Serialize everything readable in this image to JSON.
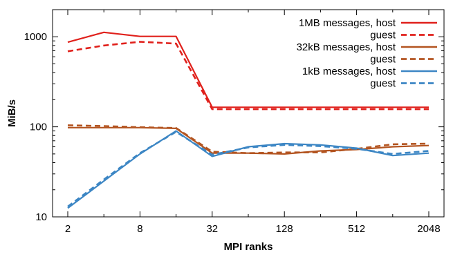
{
  "chart_data": {
    "type": "line",
    "xlabel": "MPI ranks",
    "ylabel": "MiB/s",
    "x_scale": "log2",
    "y_scale": "log10",
    "xlim": [
      2,
      2048
    ],
    "ylim": [
      10,
      2000
    ],
    "x_ticks": [
      2,
      8,
      32,
      128,
      512,
      2048
    ],
    "x_tick_labels": [
      "2",
      "8",
      "32",
      "128",
      "512",
      "2048"
    ],
    "y_ticks": [
      10,
      100,
      1000
    ],
    "y_tick_labels": [
      "10",
      "100",
      "1000"
    ],
    "grid": false,
    "legend_position": "top-right",
    "series": [
      {
        "name": "1MB messages, host",
        "group": "1MB",
        "style": "solid",
        "color": "#e0201b",
        "x": [
          2,
          4,
          8,
          16,
          32,
          64,
          128,
          256,
          512,
          1024,
          2048
        ],
        "y": [
          870,
          1120,
          1010,
          1010,
          165,
          165,
          165,
          165,
          165,
          165,
          165
        ]
      },
      {
        "name": "guest",
        "group": "1MB",
        "style": "dashed",
        "color": "#e0201b",
        "x": [
          2,
          4,
          8,
          16,
          32,
          64,
          128,
          256,
          512,
          1024,
          2048
        ],
        "y": [
          690,
          800,
          880,
          840,
          157,
          157,
          157,
          157,
          157,
          157,
          157
        ]
      },
      {
        "name": "32kB messages, host",
        "group": "32kB",
        "style": "solid",
        "color": "#b35420",
        "x": [
          2,
          4,
          8,
          16,
          32,
          64,
          128,
          256,
          512,
          1024,
          2048
        ],
        "y": [
          98,
          98,
          98,
          96,
          51,
          51,
          50,
          54,
          56,
          60,
          62
        ]
      },
      {
        "name": "guest",
        "group": "32kB",
        "style": "dashed",
        "color": "#b35420",
        "x": [
          2,
          4,
          8,
          16,
          32,
          64,
          128,
          256,
          512,
          1024,
          2048
        ],
        "y": [
          104,
          102,
          99,
          97,
          53,
          51,
          52,
          52,
          57,
          64,
          65
        ]
      },
      {
        "name": "1kB messages, host",
        "group": "1kB",
        "style": "solid",
        "color": "#3c86c4",
        "x": [
          2,
          4,
          8,
          16,
          32,
          64,
          128,
          256,
          512,
          1024,
          2048
        ],
        "y": [
          12.5,
          25,
          50,
          90,
          47,
          60,
          65,
          63,
          58,
          48,
          51
        ]
      },
      {
        "name": "guest",
        "group": "1kB",
        "style": "dashed",
        "color": "#3c86c4",
        "x": [
          2,
          4,
          8,
          16,
          32,
          64,
          128,
          256,
          512,
          1024,
          2048
        ],
        "y": [
          13,
          26,
          51,
          88,
          49,
          59,
          63,
          61,
          57,
          50,
          54
        ]
      }
    ]
  }
}
